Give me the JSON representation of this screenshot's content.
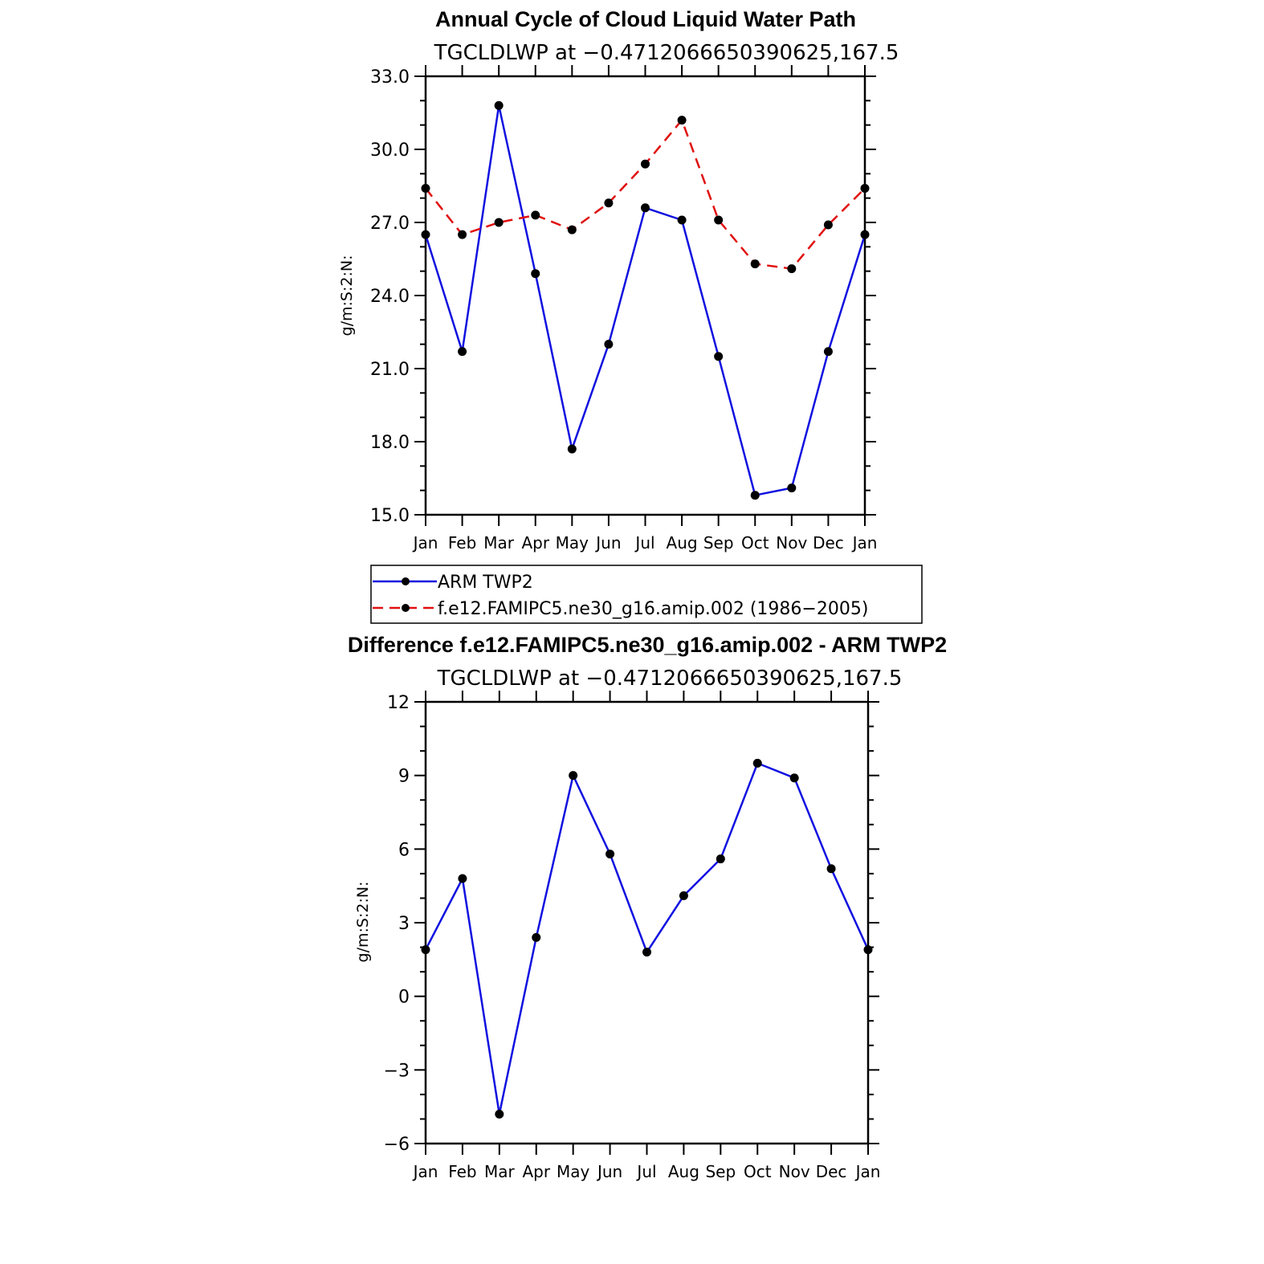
{
  "figure_title": "Annual Cycle of Cloud Liquid Water Path",
  "colors": {
    "arm": "#1010e0",
    "model": "#e01010",
    "marker": "#000000",
    "axis": "#000000"
  },
  "chart_data": [
    {
      "type": "line",
      "title": "Annual Cycle of Cloud Liquid Water Path",
      "subtitle": "TGCLDLWP at −0.4712066650390625,167.5",
      "xlabel": "",
      "ylabel": "g/m:S:2:N:",
      "categories": [
        "Jan",
        "Feb",
        "Mar",
        "Apr",
        "May",
        "Jun",
        "Jul",
        "Aug",
        "Sep",
        "Oct",
        "Nov",
        "Dec",
        "Jan"
      ],
      "ylim": [
        15.0,
        33.0
      ],
      "yticks": [
        15.0,
        18.0,
        21.0,
        24.0,
        27.0,
        30.0,
        33.0
      ],
      "ytick_labels": [
        "15.0",
        "18.0",
        "21.0",
        "24.0",
        "27.0",
        "30.0",
        "33.0"
      ],
      "grid": false,
      "legend_position": "bottom",
      "series": [
        {
          "name": "ARM TWP2",
          "style": "solid",
          "values": [
            26.5,
            21.7,
            31.8,
            24.9,
            17.7,
            22.0,
            27.6,
            27.1,
            21.5,
            15.8,
            16.1,
            21.7,
            26.5
          ]
        },
        {
          "name": "f.e12.FAMIPC5.ne30_g16.amip.002 (1986−2005)",
          "style": "dashed",
          "values": [
            28.4,
            26.5,
            27.0,
            27.3,
            26.7,
            27.8,
            29.4,
            31.2,
            27.1,
            25.3,
            25.1,
            26.9,
            28.4
          ]
        }
      ]
    },
    {
      "type": "line",
      "title": "Difference f.e12.FAMIPC5.ne30_g16.amip.002 - ARM TWP2",
      "subtitle": "TGCLDLWP at −0.4712066650390625,167.5",
      "xlabel": "",
      "ylabel": "g/m:S:2:N:",
      "categories": [
        "Jan",
        "Feb",
        "Mar",
        "Apr",
        "May",
        "Jun",
        "Jul",
        "Aug",
        "Sep",
        "Oct",
        "Nov",
        "Dec",
        "Jan"
      ],
      "ylim": [
        -6,
        12
      ],
      "yticks": [
        -6,
        -3,
        0,
        3,
        6,
        9,
        12
      ],
      "ytick_labels": [
        "−6",
        "−3",
        "0",
        "3",
        "6",
        "9",
        "12"
      ],
      "grid": false,
      "series": [
        {
          "style": "solid",
          "values": [
            1.9,
            4.8,
            -4.8,
            2.4,
            9.0,
            5.8,
            1.8,
            4.1,
            5.6,
            9.5,
            8.9,
            5.2,
            1.9
          ]
        }
      ]
    }
  ]
}
